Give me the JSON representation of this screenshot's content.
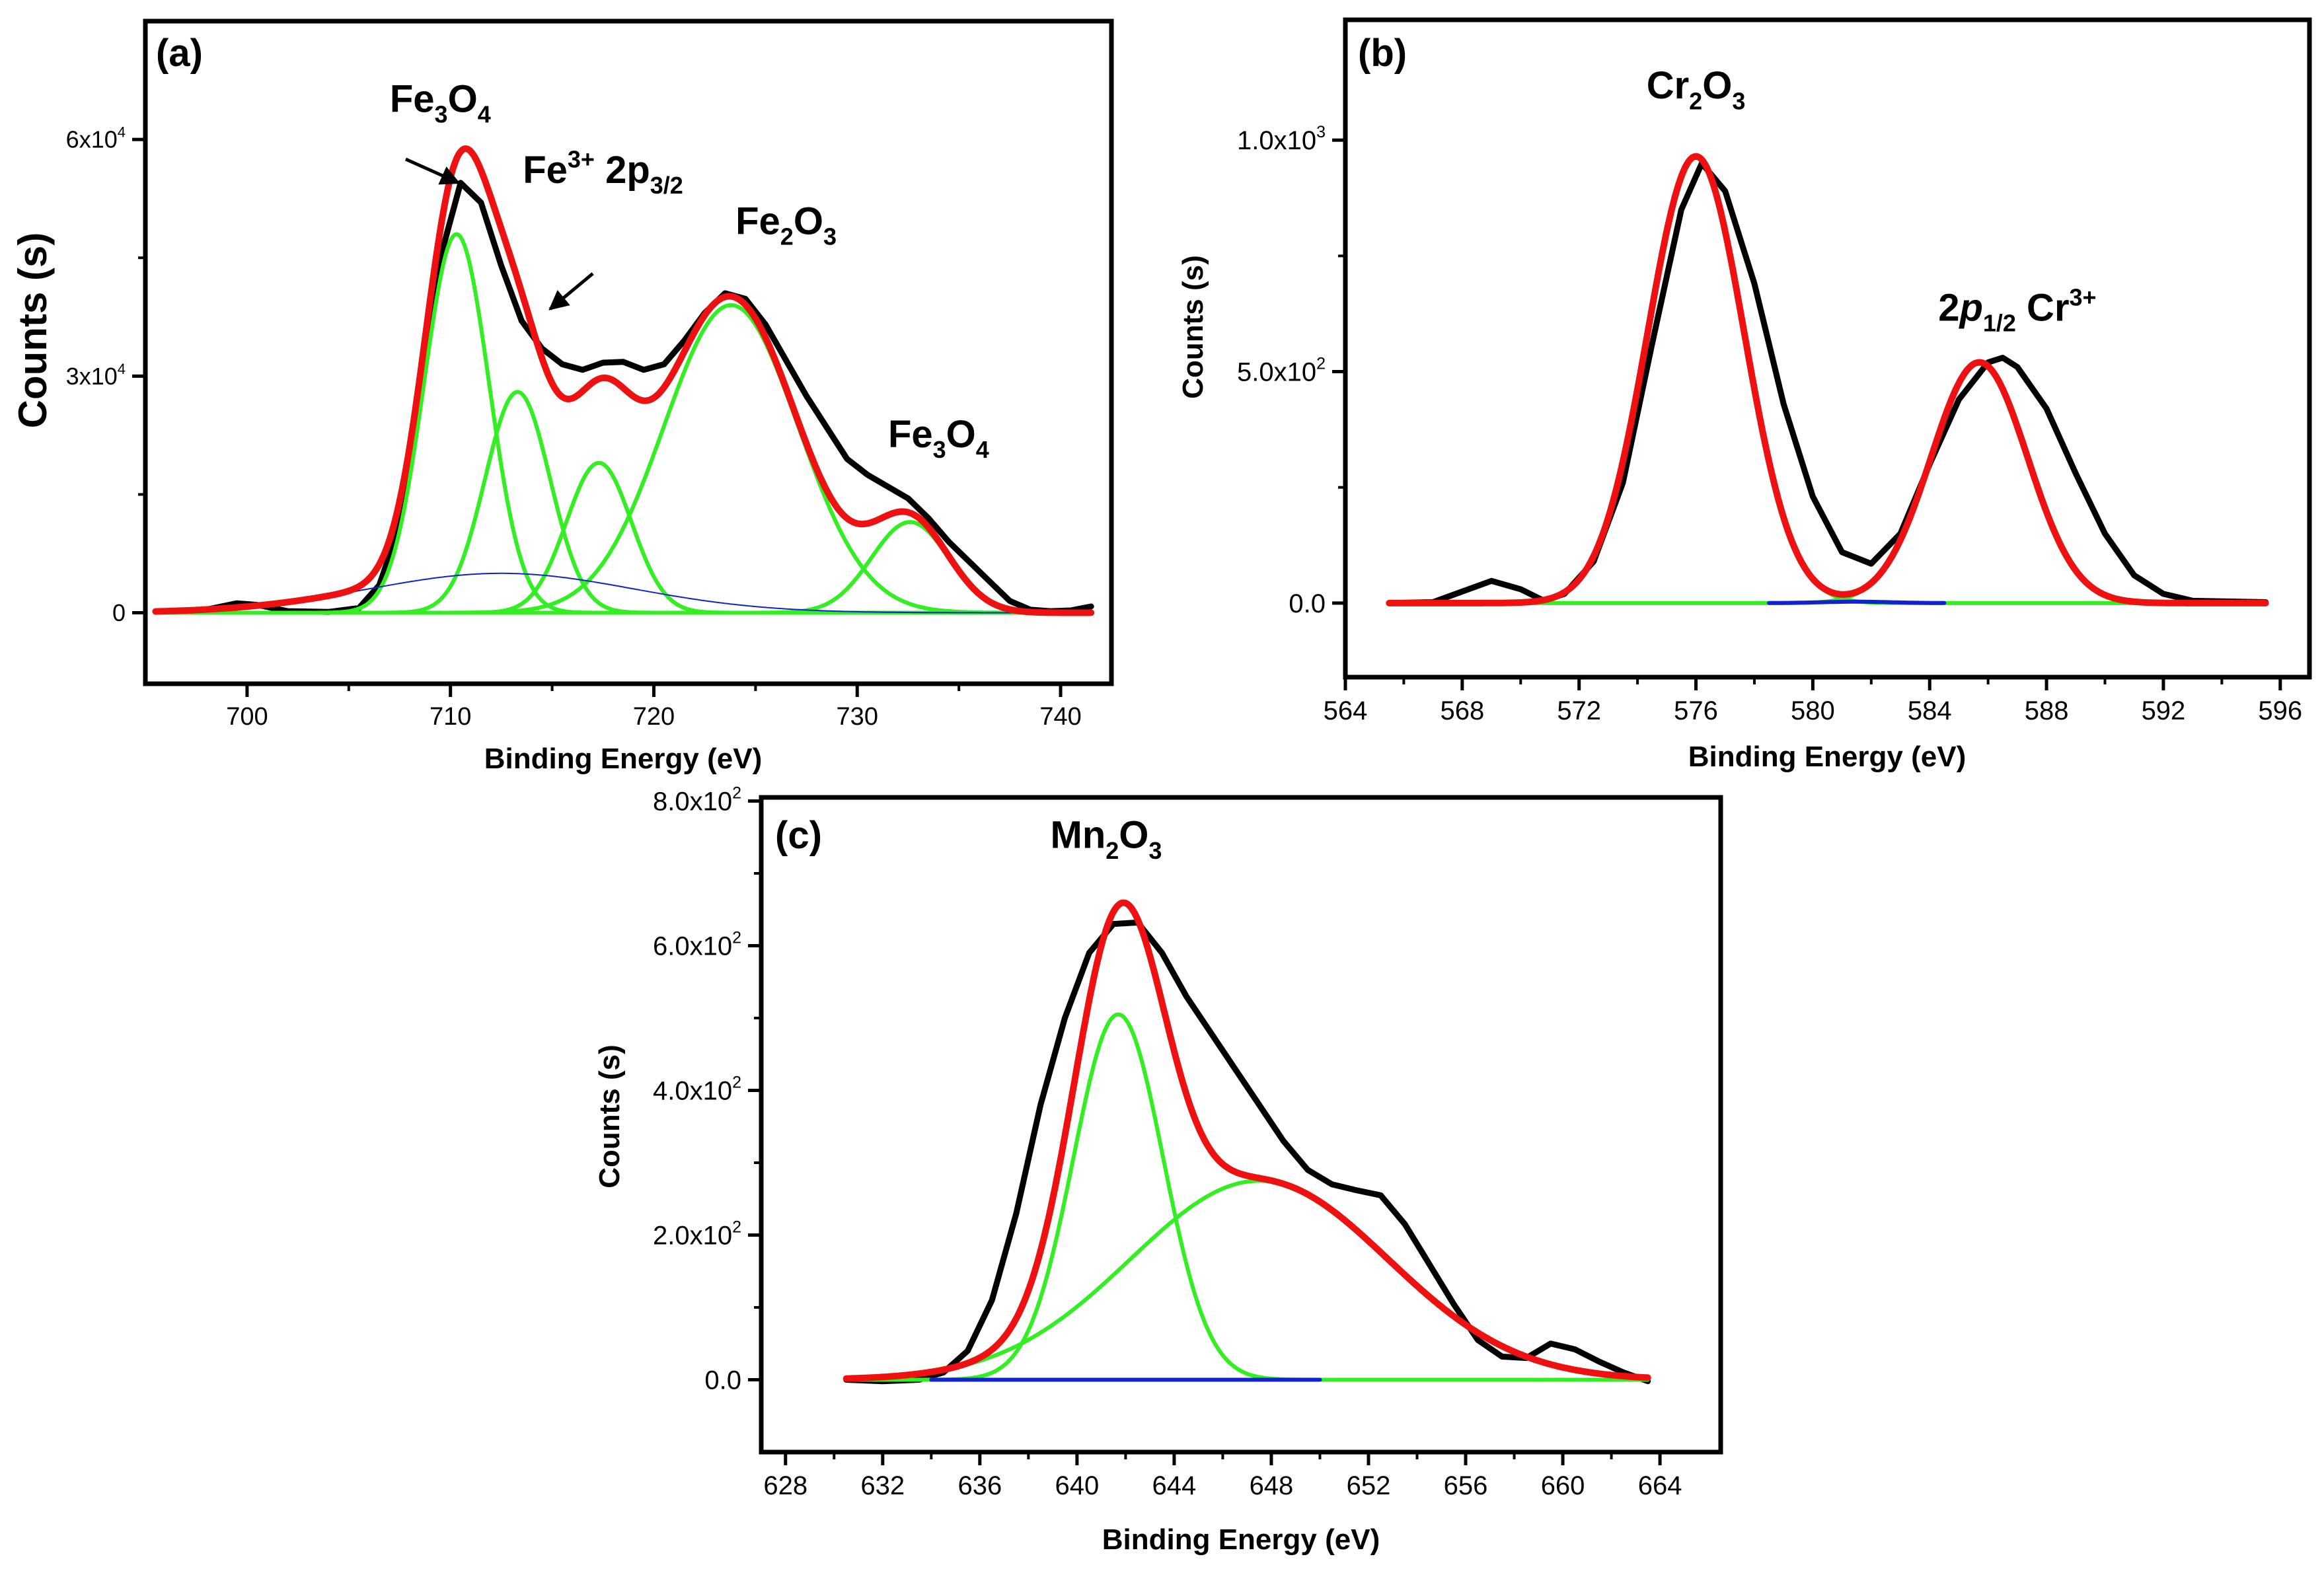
{
  "colors": {
    "raw": "#000000",
    "envelope": "#ee1111",
    "component": "#33ee22",
    "background": "#1122cc",
    "axis": "#000000"
  },
  "chart_data": [
    {
      "panel_label": "(a)",
      "type": "line",
      "xlabel": "Binding Energy (eV)",
      "ylabel": "Counts (s)",
      "xlim": [
        695,
        742.5
      ],
      "ylim": [
        -9000,
        75000
      ],
      "x_ticks": [
        700,
        710,
        720,
        730,
        740
      ],
      "x_tick_labels": [
        "700",
        "710",
        "720",
        "730",
        "740"
      ],
      "y_ticks": [
        0,
        30000,
        60000
      ],
      "y_tick_labels": [
        {
          "base": "0",
          "exp": ""
        },
        {
          "base": "3x10",
          "exp": "4"
        },
        {
          "base": "6x10",
          "exp": "4"
        }
      ],
      "series": [
        {
          "role": "raw",
          "points": [
            [
              696,
              200
            ],
            [
              698,
              400
            ],
            [
              699.5,
              1200
            ],
            [
              700.5,
              1000
            ],
            [
              702,
              200
            ],
            [
              704,
              100
            ],
            [
              705.5,
              600
            ],
            [
              706.5,
              3500
            ],
            [
              707.5,
              11000
            ],
            [
              708.5,
              27000
            ],
            [
              709.5,
              45000
            ],
            [
              710.5,
              54500
            ],
            [
              711.5,
              52000
            ],
            [
              712.5,
              44000
            ],
            [
              713.5,
              37000
            ],
            [
              714.5,
              33500
            ],
            [
              715.5,
              31500
            ],
            [
              716.5,
              30800
            ],
            [
              717.5,
              31700
            ],
            [
              718.5,
              31800
            ],
            [
              719.5,
              30800
            ],
            [
              720.5,
              31500
            ],
            [
              721.5,
              34500
            ],
            [
              722.5,
              38000
            ],
            [
              723.5,
              40500
            ],
            [
              724.5,
              39800
            ],
            [
              725.5,
              36500
            ],
            [
              726.5,
              32000
            ],
            [
              727.5,
              27500
            ],
            [
              728.5,
              23500
            ],
            [
              729.5,
              19500
            ],
            [
              730.5,
              17500
            ],
            [
              731.5,
              16000
            ],
            [
              732.5,
              14500
            ],
            [
              733.5,
              12000
            ],
            [
              734.5,
              9000
            ],
            [
              735.5,
              6500
            ],
            [
              736.5,
              4000
            ],
            [
              737.5,
              1500
            ],
            [
              738.5,
              400
            ],
            [
              739.5,
              200
            ],
            [
              740.5,
              300
            ],
            [
              741.5,
              800
            ]
          ]
        },
        {
          "role": "envelope",
          "peaks": [
            [
              710.3,
              48000,
              1.6
            ],
            [
              713.3,
              28000,
              1.6
            ],
            [
              717.3,
              19000,
              1.6
            ],
            [
              723.8,
              39000,
              3.3
            ],
            [
              732.6,
              11500,
              1.9
            ]
          ],
          "broad": [
            712.5,
            5000,
            6.5
          ],
          "xrange": [
            695.5,
            741.5
          ]
        },
        {
          "role": "component",
          "peak": [
            710.3,
            48000,
            1.6
          ],
          "xrange": [
            695.5,
            741.5
          ]
        },
        {
          "role": "component",
          "peak": [
            713.3,
            28000,
            1.6
          ],
          "xrange": [
            695.5,
            741.5
          ]
        },
        {
          "role": "component",
          "peak": [
            717.3,
            19000,
            1.6
          ],
          "xrange": [
            695.5,
            741.5
          ]
        },
        {
          "role": "component",
          "peak": [
            723.8,
            39000,
            3.3
          ],
          "xrange": [
            695.5,
            741.5
          ]
        },
        {
          "role": "component",
          "peak": [
            732.6,
            11500,
            1.9
          ],
          "xrange": [
            695.5,
            741.5
          ]
        },
        {
          "role": "background",
          "peak": [
            712.5,
            5000,
            6.5
          ],
          "xrange": [
            695.5,
            741.5
          ]
        }
      ],
      "annotations": [
        {
          "parts": [
            [
              "Fe",
              ""
            ],
            [
              "3",
              "sub"
            ],
            [
              "O",
              ""
            ],
            [
              "4",
              "sub"
            ]
          ],
          "x": 709.5,
          "y": 63500
        },
        {
          "parts": [
            [
              "Fe",
              ""
            ],
            [
              "3+",
              "sup"
            ],
            [
              " 2p",
              ""
            ],
            [
              "3/2",
              "sub"
            ]
          ],
          "x": 717.5,
          "y": 54500
        },
        {
          "parts": [
            [
              "Fe",
              ""
            ],
            [
              "2",
              "sub"
            ],
            [
              "O",
              ""
            ],
            [
              "3",
              "sub"
            ]
          ],
          "x": 726.5,
          "y": 48000
        },
        {
          "parts": [
            [
              "Fe",
              ""
            ],
            [
              "3",
              "sub"
            ],
            [
              "O",
              ""
            ],
            [
              "4",
              "sub"
            ]
          ],
          "x": 734,
          "y": 21000
        }
      ],
      "arrows": [
        {
          "from": [
            707.8,
            57500
          ],
          "to": [
            710.4,
            54500
          ]
        },
        {
          "from": [
            717,
            43000
          ],
          "to": [
            714.9,
            38500
          ]
        }
      ]
    },
    {
      "panel_label": "(b)",
      "type": "line",
      "xlabel": "Binding Energy (eV)",
      "ylabel": "Counts (s)",
      "xlim": [
        564,
        597
      ],
      "ylim": [
        -160,
        1260
      ],
      "x_ticks": [
        564,
        568,
        572,
        576,
        580,
        584,
        588,
        592,
        596
      ],
      "x_tick_labels": [
        "564",
        "568",
        "572",
        "576",
        "580",
        "584",
        "588",
        "592",
        "596"
      ],
      "y_ticks": [
        0,
        500,
        1000
      ],
      "y_tick_labels": [
        {
          "base": "0.0",
          "exp": ""
        },
        {
          "base": "5.0x10",
          "exp": "2"
        },
        {
          "base": "1.0x10",
          "exp": "3"
        }
      ],
      "series": [
        {
          "role": "raw",
          "points": [
            [
              565.5,
              0
            ],
            [
              567,
              2
            ],
            [
              568,
              25
            ],
            [
              569,
              48
            ],
            [
              570,
              30
            ],
            [
              570.8,
              5
            ],
            [
              571.5,
              20
            ],
            [
              572.5,
              90
            ],
            [
              573.5,
              260
            ],
            [
              574.5,
              560
            ],
            [
              575.5,
              850
            ],
            [
              576.2,
              950
            ],
            [
              577,
              890
            ],
            [
              578,
              690
            ],
            [
              579,
              430
            ],
            [
              580,
              230
            ],
            [
              581,
              110
            ],
            [
              582,
              85
            ],
            [
              583,
              150
            ],
            [
              584,
              300
            ],
            [
              585,
              440
            ],
            [
              586,
              520
            ],
            [
              586.5,
              530
            ],
            [
              587,
              510
            ],
            [
              588,
              420
            ],
            [
              589,
              280
            ],
            [
              590,
              150
            ],
            [
              591,
              60
            ],
            [
              592,
              20
            ],
            [
              593,
              5
            ],
            [
              595.5,
              2
            ]
          ]
        },
        {
          "role": "envelope",
          "peaks": [
            [
              576,
              965,
              1.65
            ],
            [
              585.7,
              520,
              1.65
            ]
          ],
          "xrange": [
            565.5,
            595.5
          ]
        },
        {
          "role": "component",
          "peak": [
            576,
            965,
            1.65
          ],
          "xrange": [
            565.5,
            595.5
          ]
        },
        {
          "role": "component",
          "peak": [
            585.7,
            520,
            1.65
          ],
          "xrange": [
            565.5,
            595.5
          ]
        },
        {
          "role": "background",
          "peak": [
            581.5,
            3,
            1.2
          ],
          "xrange": [
            578.5,
            584.5
          ]
        }
      ],
      "annotations": [
        {
          "parts": [
            [
              "Cr",
              ""
            ],
            [
              "2",
              "sub"
            ],
            [
              "O",
              ""
            ],
            [
              "3",
              "sub"
            ]
          ],
          "x": 576,
          "y": 1090
        },
        {
          "parts": [
            [
              "2",
              ""
            ],
            [
              "p",
              "subital"
            ],
            [
              "1/2",
              "sub"
            ],
            [
              " Cr",
              ""
            ],
            [
              "3+",
              "sup"
            ]
          ],
          "x": 587,
          "y": 610
        }
      ],
      "arrows": []
    },
    {
      "panel_label": "(c)",
      "type": "line",
      "xlabel": "Binding Energy (eV)",
      "ylabel": "Counts (s)",
      "xlim": [
        627,
        666.5
      ],
      "ylim": [
        -100,
        805
      ],
      "x_ticks": [
        628,
        632,
        636,
        640,
        644,
        648,
        652,
        656,
        660,
        664
      ],
      "x_tick_labels": [
        "628",
        "632",
        "636",
        "640",
        "644",
        "648",
        "652",
        "656",
        "660",
        "664"
      ],
      "y_ticks": [
        0,
        200,
        400,
        600,
        800
      ],
      "y_tick_labels": [
        {
          "base": "0.0",
          "exp": ""
        },
        {
          "base": "2.0x10",
          "exp": "2"
        },
        {
          "base": "4.0x10",
          "exp": "2"
        },
        {
          "base": "6.0x10",
          "exp": "2"
        },
        {
          "base": "8.0x10",
          "exp": "2"
        }
      ],
      "series": [
        {
          "role": "raw",
          "points": [
            [
              630.5,
              0
            ],
            [
              632,
              -2
            ],
            [
              633.5,
              0
            ],
            [
              634.5,
              10
            ],
            [
              635.5,
              40
            ],
            [
              636.5,
              110
            ],
            [
              637.5,
              230
            ],
            [
              638.5,
              380
            ],
            [
              639.5,
              500
            ],
            [
              640.5,
              590
            ],
            [
              641.5,
              630
            ],
            [
              642.5,
              632
            ],
            [
              643.5,
              590
            ],
            [
              644.5,
              530
            ],
            [
              645.5,
              480
            ],
            [
              646.5,
              430
            ],
            [
              647.5,
              380
            ],
            [
              648.5,
              330
            ],
            [
              649.5,
              290
            ],
            [
              650.5,
              270
            ],
            [
              651.5,
              262
            ],
            [
              652.5,
              255
            ],
            [
              653.5,
              215
            ],
            [
              654.5,
              160
            ],
            [
              655.5,
              105
            ],
            [
              656.5,
              55
            ],
            [
              657.5,
              32
            ],
            [
              658.5,
              30
            ],
            [
              659.5,
              50
            ],
            [
              660.5,
              42
            ],
            [
              661.5,
              25
            ],
            [
              662.5,
              10
            ],
            [
              663.5,
              -2
            ]
          ]
        },
        {
          "role": "envelope",
          "peaks": [
            [
              641.7,
              505,
              1.85
            ],
            [
              647.5,
              275,
              5.3
            ]
          ],
          "xrange": [
            630.5,
            663.5
          ]
        },
        {
          "role": "component",
          "peak": [
            641.7,
            505,
            1.85
          ],
          "xrange": [
            630.5,
            663.5
          ]
        },
        {
          "role": "component",
          "peak": [
            647.5,
            275,
            5.3
          ],
          "xrange": [
            630.5,
            663.5
          ]
        },
        {
          "role": "background",
          "peak": [
            647,
            0,
            1
          ],
          "xrange": [
            634,
            650
          ]
        }
      ],
      "annotations": [
        {
          "parts": [
            [
              "Mn",
              ""
            ],
            [
              "2",
              "sub"
            ],
            [
              "O",
              ""
            ],
            [
              "3",
              "sub"
            ]
          ],
          "x": 641.2,
          "y": 735
        }
      ],
      "arrows": []
    }
  ]
}
